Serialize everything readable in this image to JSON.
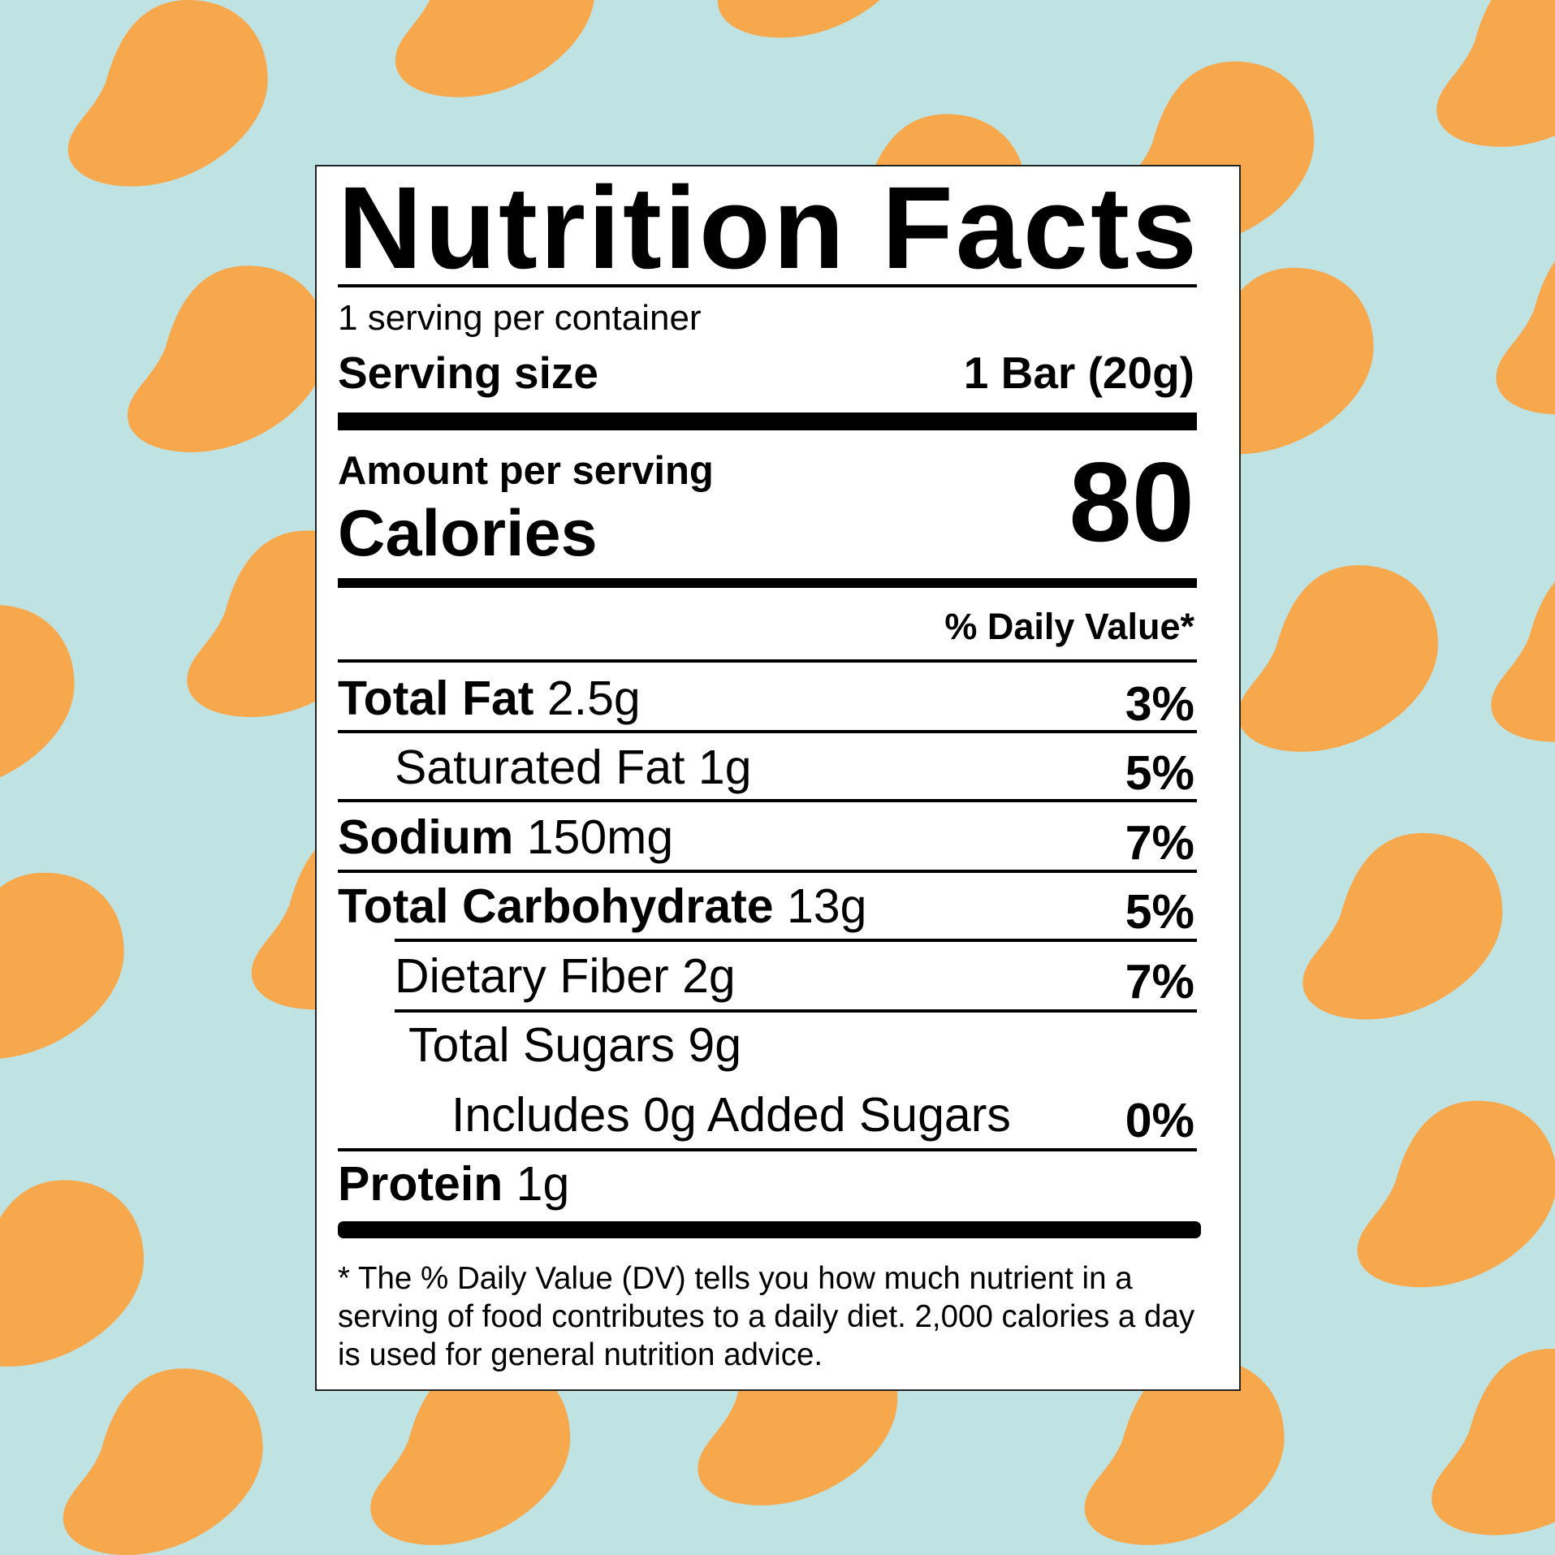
{
  "colors": {
    "background": "#BFE3E2",
    "mango": "#F7A84D",
    "ink": "#000000"
  },
  "background_pattern_icon": "mango-icon",
  "label": {
    "title": "Nutrition Facts",
    "servings_per_container": "1 serving per container",
    "serving_size_label": "Serving size",
    "serving_size_value": "1 Bar (20g)",
    "amount_per_serving": "Amount per serving",
    "calories_label": "Calories",
    "calories_value": "80",
    "daily_value_header": "% Daily Value*",
    "rows": [
      {
        "name": "Total Fat",
        "amount": "2.5g",
        "dv": "3%"
      },
      {
        "name": "Saturated Fat",
        "amount": "1g",
        "dv": "5%"
      },
      {
        "name": "Sodium",
        "amount": "150mg",
        "dv": "7%"
      },
      {
        "name": "Total Carbohydrate",
        "amount": "13g",
        "dv": "5%"
      },
      {
        "name": "Dietary Fiber",
        "amount": "2g",
        "dv": "7%"
      },
      {
        "name": "Total Sugars",
        "amount": "9g",
        "dv": ""
      },
      {
        "name": "Includes 0g Added Sugars",
        "amount": "",
        "dv": "0%"
      },
      {
        "name": "Protein",
        "amount": "1g",
        "dv": ""
      }
    ],
    "footnote": "* The % Daily Value (DV) tells you how much nutrient in a serving of food contributes to a daily diet. 2,000 calories a day is used for general nutrition advice."
  }
}
